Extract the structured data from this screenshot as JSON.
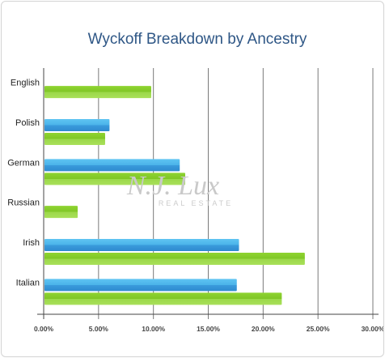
{
  "chart_data": {
    "type": "bar",
    "orientation": "horizontal",
    "title": "Wyckoff Breakdown by Ancestry",
    "categories": [
      "English",
      "Polish",
      "German",
      "Russian",
      "Irish",
      "Italian"
    ],
    "series": [
      {
        "values": [
          null,
          6.0,
          12.4,
          null,
          17.8,
          17.6
        ],
        "color": "#3aa4e0"
      },
      {
        "values": [
          9.8,
          5.6,
          12.9,
          3.1,
          23.8,
          21.7
        ],
        "color": "#7ec624"
      }
    ],
    "x_ticks": [
      "0.00%",
      "5.00%",
      "10.00%",
      "15.00%",
      "20.00%",
      "25.00%",
      "30.00%"
    ],
    "xlim": [
      0,
      30
    ],
    "grid": true,
    "legend": "none",
    "watermark": {
      "main": "N.J. Lux",
      "sub": "REAL ESTATE"
    }
  }
}
